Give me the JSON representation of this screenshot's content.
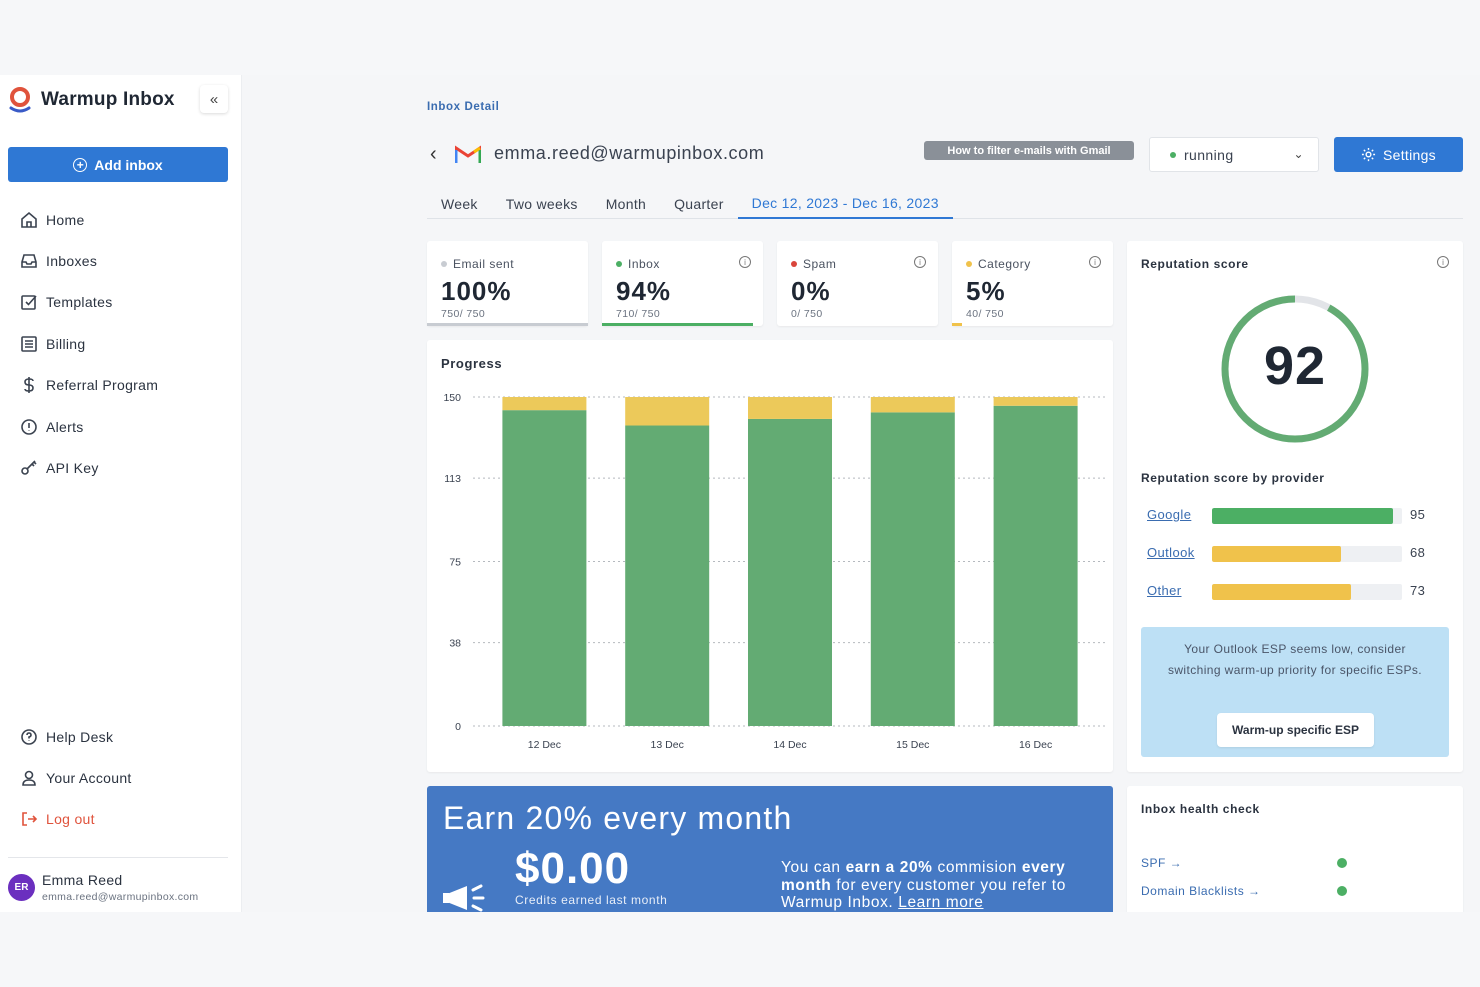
{
  "app": {
    "name": "Warmup Inbox"
  },
  "sidebar": {
    "add_inbox_label": "Add inbox",
    "items": [
      {
        "label": "Home",
        "icon": "home-icon"
      },
      {
        "label": "Inboxes",
        "icon": "inbox-icon"
      },
      {
        "label": "Templates",
        "icon": "templates-icon"
      },
      {
        "label": "Billing",
        "icon": "billing-icon"
      },
      {
        "label": "Referral Program",
        "icon": "dollar-icon"
      },
      {
        "label": "Alerts",
        "icon": "alert-icon"
      },
      {
        "label": "API Key",
        "icon": "key-icon"
      }
    ],
    "bottom_items": [
      {
        "label": "Help Desk",
        "icon": "help-icon"
      },
      {
        "label": "Your Account",
        "icon": "user-icon"
      },
      {
        "label": "Log out",
        "icon": "logout-icon"
      }
    ],
    "user": {
      "initials": "ER",
      "name": "Emma Reed",
      "email": "emma.reed@warmupinbox.com"
    }
  },
  "header": {
    "breadcrumb": "Inbox Detail",
    "email": "emma.reed@warmupinbox.com",
    "gmail_tip": "How to filter e-mails with Gmail",
    "status": "running",
    "settings_label": "Settings"
  },
  "tabs": [
    "Week",
    "Two weeks",
    "Month",
    "Quarter",
    "Dec 12, 2023 - Dec 16, 2023"
  ],
  "active_tab": 4,
  "stats": [
    {
      "label": "Email sent",
      "value": "100%",
      "sub": "750/ 750",
      "dot_color": "#c8ccd2",
      "bar_color": "#c8ccd2",
      "fill": 1.0,
      "info": false
    },
    {
      "label": "Inbox",
      "value": "94%",
      "sub": "710/ 750",
      "dot_color": "#4caf64",
      "bar_color": "#4caf64",
      "fill": 0.94,
      "info": true
    },
    {
      "label": "Spam",
      "value": "0%",
      "sub": "0/ 750",
      "dot_color": "#d9453b",
      "bar_color": "#d9453b",
      "fill": 0.0,
      "info": true
    },
    {
      "label": "Category",
      "value": "5%",
      "sub": "40/ 750",
      "dot_color": "#f0c24b",
      "bar_color": "#f0c24b",
      "fill": 0.05,
      "info": true
    }
  ],
  "progress": {
    "title": "Progress"
  },
  "chart_data": {
    "type": "bar",
    "stacked": true,
    "categories": [
      "12 Dec",
      "13 Dec",
      "14 Dec",
      "15 Dec",
      "16 Dec"
    ],
    "series": [
      {
        "values": [
          144,
          137,
          140,
          143,
          146
        ],
        "color": "#63ab73"
      },
      {
        "values": [
          6,
          13,
          10,
          7,
          4
        ],
        "color": "#ecc95a"
      }
    ],
    "yticks": [
      0,
      38,
      75,
      113,
      150
    ],
    "ylim": [
      0,
      150
    ],
    "grid": true
  },
  "reputation": {
    "title": "Reputation score",
    "score": "92",
    "score_value": 92,
    "by_provider_title": "Reputation score by provider",
    "providers": [
      {
        "name": "Google",
        "value": 95,
        "color": "#4caf64"
      },
      {
        "name": "Outlook",
        "value": 68,
        "color": "#f0c24b"
      },
      {
        "name": "Other",
        "value": 73,
        "color": "#f0c24b"
      }
    ],
    "hint": "Your Outlook ESP seems low, consider switching warm-up priority for specific ESPs.",
    "hint_button": "Warm-up specific ESP"
  },
  "earn": {
    "title": "Earn 20% every month",
    "amount": "$0.00",
    "amount_caption": "Credits earned last month",
    "t1": "You can ",
    "t2": "earn a 20%",
    "t3": " commision ",
    "t4": "every month",
    "t5": " for every customer you refer to Warmup Inbox. ",
    "link": "Learn more"
  },
  "health": {
    "title": "Inbox health check",
    "items": [
      {
        "label": "SPF",
        "status_color": "#4caf64"
      },
      {
        "label": "Domain Blacklists",
        "status_color": "#4caf64"
      }
    ]
  }
}
